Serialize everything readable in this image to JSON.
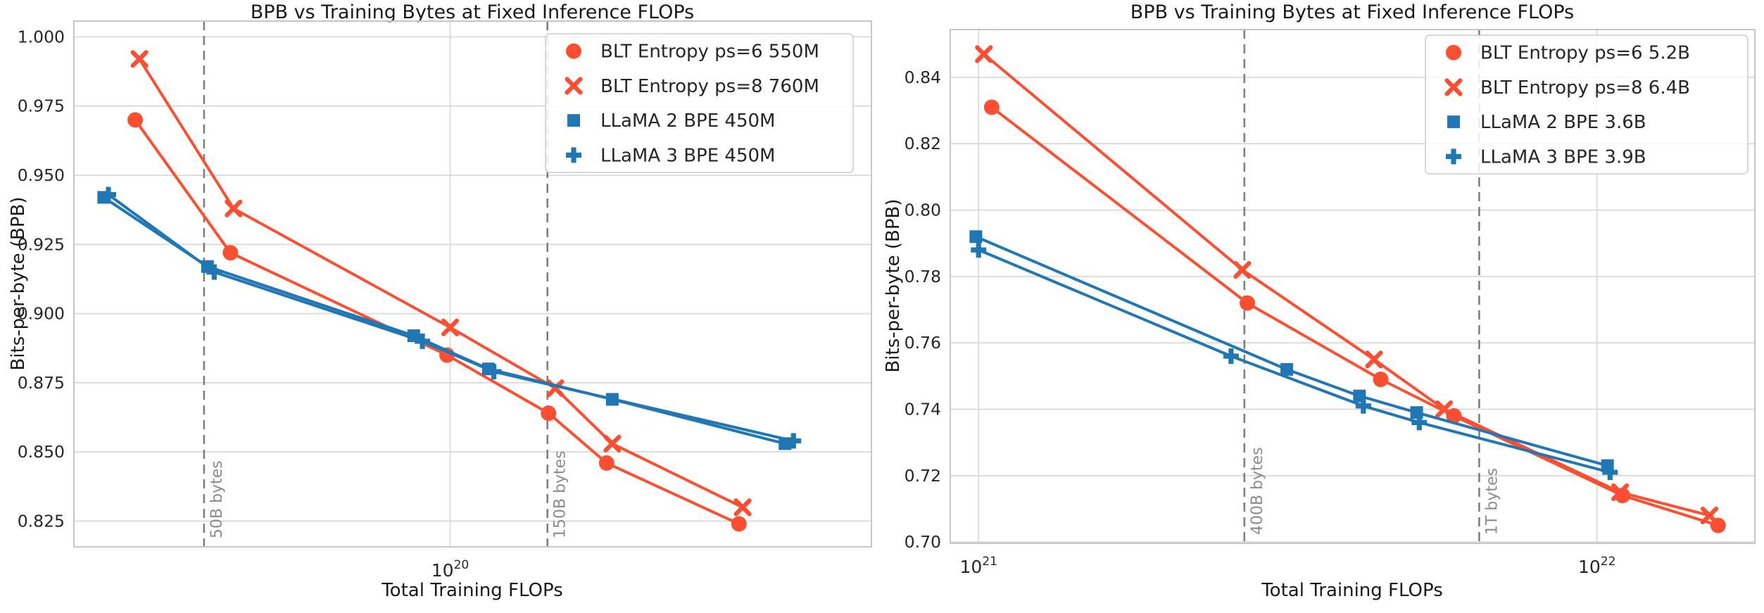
{
  "page": {
    "background": "#ffffff"
  },
  "colors": {
    "blt_red": "#fa4f32",
    "llama_blue": "#2177b4",
    "grid": "#d9d9d9",
    "vline_gray": "#7f7f7f",
    "vline_label_gray": "#8c8c8c",
    "tick_text": "#262626"
  },
  "chart_data": [
    {
      "type": "line",
      "title": "BPB vs Training Bytes at Fixed Inference FLOPs",
      "xlabel": "Total Training FLOPs",
      "ylabel": "Bits-per-byte (BPB)",
      "x_scale": "log",
      "grid": true,
      "legend_position": "upper right",
      "xlim": [
        3e+19,
        3.85e+20
      ],
      "ylim": [
        0.8157,
        1.0057
      ],
      "y_ticks": [
        {
          "v": 1.0,
          "label": "1.000"
        },
        {
          "v": 0.975,
          "label": "0.975"
        },
        {
          "v": 0.95,
          "label": "0.950"
        },
        {
          "v": 0.925,
          "label": "0.925"
        },
        {
          "v": 0.9,
          "label": "0.900"
        },
        {
          "v": 0.875,
          "label": "0.875"
        },
        {
          "v": 0.85,
          "label": "0.850"
        },
        {
          "v": 0.825,
          "label": "0.825"
        }
      ],
      "x_ticks": [
        {
          "v": 1e+20,
          "mantissa": "10",
          "exp": "20"
        }
      ],
      "vlines": [
        {
          "x": 4.55e+19,
          "label": "50B bytes"
        },
        {
          "x": 1.365e+20,
          "label": "150B bytes"
        }
      ],
      "series": [
        {
          "name": "BLT Entropy ps=6 550M",
          "color": "#fa4f32",
          "marker": "circle",
          "points": [
            [
              3.65e+19,
              0.97
            ],
            [
              4.95e+19,
              0.922
            ],
            [
              9.9e+19,
              0.885
            ],
            [
              1.37e+20,
              0.864
            ],
            [
              1.65e+20,
              0.846
            ],
            [
              2.52e+20,
              0.824
            ]
          ]
        },
        {
          "name": "BLT Entropy ps=8 760M",
          "color": "#fa4f32",
          "marker": "x",
          "points": [
            [
              3.7e+19,
              0.992
            ],
            [
              5e+19,
              0.938
            ],
            [
              1e+20,
              0.895
            ],
            [
              1.4e+20,
              0.873
            ],
            [
              1.68e+20,
              0.853
            ],
            [
              2.55e+20,
              0.83
            ]
          ]
        },
        {
          "name": "LLaMA 2 BPE 450M",
          "color": "#2177b4",
          "marker": "square",
          "points": [
            [
              3.3e+19,
              0.942
            ],
            [
              4.6e+19,
              0.917
            ],
            [
              8.9e+19,
              0.892
            ],
            [
              1.13e+20,
              0.88
            ],
            [
              1.68e+20,
              0.869
            ],
            [
              2.92e+20,
              0.853
            ]
          ]
        },
        {
          "name": "LLaMA 3 BPE 450M",
          "color": "#2177b4",
          "marker": "plus",
          "points": [
            [
              3.35e+19,
              0.943
            ],
            [
              4.7e+19,
              0.915
            ],
            [
              9.15e+19,
              0.89
            ],
            [
              1.15e+20,
              0.879
            ],
            [
              3e+20,
              0.854
            ]
          ]
        }
      ]
    },
    {
      "type": "line",
      "title": "BPB vs Training Bytes at Fixed Inference FLOPs",
      "xlabel": "Total Training FLOPs",
      "ylabel": "Bits-per-byte (BPB)",
      "x_scale": "log",
      "grid": true,
      "legend_position": "upper right",
      "xlim": [
        9e+20,
        1.8e+22
      ],
      "ylim": [
        0.6996,
        0.8544
      ],
      "y_ticks": [
        {
          "v": 0.84,
          "label": "0.84"
        },
        {
          "v": 0.82,
          "label": "0.82"
        },
        {
          "v": 0.8,
          "label": "0.80"
        },
        {
          "v": 0.78,
          "label": "0.78"
        },
        {
          "v": 0.76,
          "label": "0.76"
        },
        {
          "v": 0.74,
          "label": "0.74"
        },
        {
          "v": 0.72,
          "label": "0.72"
        },
        {
          "v": 0.7,
          "label": "0.70"
        }
      ],
      "x_ticks": [
        {
          "v": 1e+21,
          "mantissa": "10",
          "exp": "21"
        },
        {
          "v": 1e+22,
          "mantissa": "10",
          "exp": "22"
        }
      ],
      "vlines": [
        {
          "x": 2.69e+21,
          "label": "400B bytes"
        },
        {
          "x": 6.45e+21,
          "label": "1T bytes"
        }
      ],
      "series": [
        {
          "name": "BLT Entropy ps=6 5.2B",
          "color": "#fa4f32",
          "marker": "circle",
          "points": [
            [
              1.05e+21,
              0.831
            ],
            [
              2.72e+21,
              0.772
            ],
            [
              4.47e+21,
              0.749
            ],
            [
              5.87e+21,
              0.738
            ],
            [
              1.1e+22,
              0.714
            ],
            [
              1.57e+22,
              0.705
            ]
          ]
        },
        {
          "name": "BLT Entropy ps=8 6.4B",
          "color": "#fa4f32",
          "marker": "x",
          "points": [
            [
              1.02e+21,
              0.847
            ],
            [
              2.67e+21,
              0.782
            ],
            [
              4.36e+21,
              0.755
            ],
            [
              5.66e+21,
              0.74
            ],
            [
              1.09e+22,
              0.715
            ],
            [
              1.52e+22,
              0.708
            ]
          ]
        },
        {
          "name": "LLaMA 2 BPE 3.6B",
          "color": "#2177b4",
          "marker": "square",
          "points": [
            [
              9.9e+20,
              0.792
            ],
            [
              3.15e+21,
              0.752
            ],
            [
              4.13e+21,
              0.744
            ],
            [
              5.11e+21,
              0.739
            ],
            [
              1.04e+22,
              0.723
            ]
          ]
        },
        {
          "name": "LLaMA 3 BPE 3.9B",
          "color": "#2177b4",
          "marker": "plus",
          "points": [
            [
              1e+21,
              0.788
            ],
            [
              2.56e+21,
              0.756
            ],
            [
              4.19e+21,
              0.741
            ],
            [
              5.16e+21,
              0.736
            ],
            [
              1.05e+22,
              0.721
            ]
          ]
        }
      ]
    }
  ]
}
